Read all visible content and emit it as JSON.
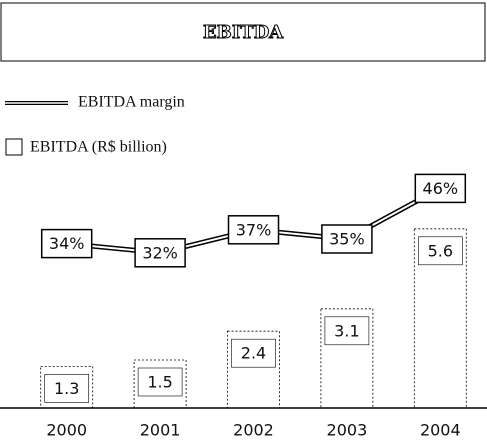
{
  "chart_data": {
    "type": "bar",
    "title": "EBITDA",
    "categories": [
      "2000",
      "2001",
      "2002",
      "2003",
      "2004"
    ],
    "series": [
      {
        "name": "EBITDA (R$ billion)",
        "type": "bar",
        "color": "#ffffff",
        "values": [
          1.3,
          1.5,
          2.4,
          3.1,
          5.6
        ]
      },
      {
        "name": "EBITDA margin",
        "type": "line",
        "axis": "y2",
        "color": "#000000",
        "values": [
          34,
          32,
          37,
          35,
          46
        ],
        "value_labels": [
          "34%",
          "32%",
          "37%",
          "35%",
          "46%"
        ]
      }
    ],
    "ylim": [
      0,
      6
    ],
    "y2lim": [
      0,
      60
    ]
  }
}
